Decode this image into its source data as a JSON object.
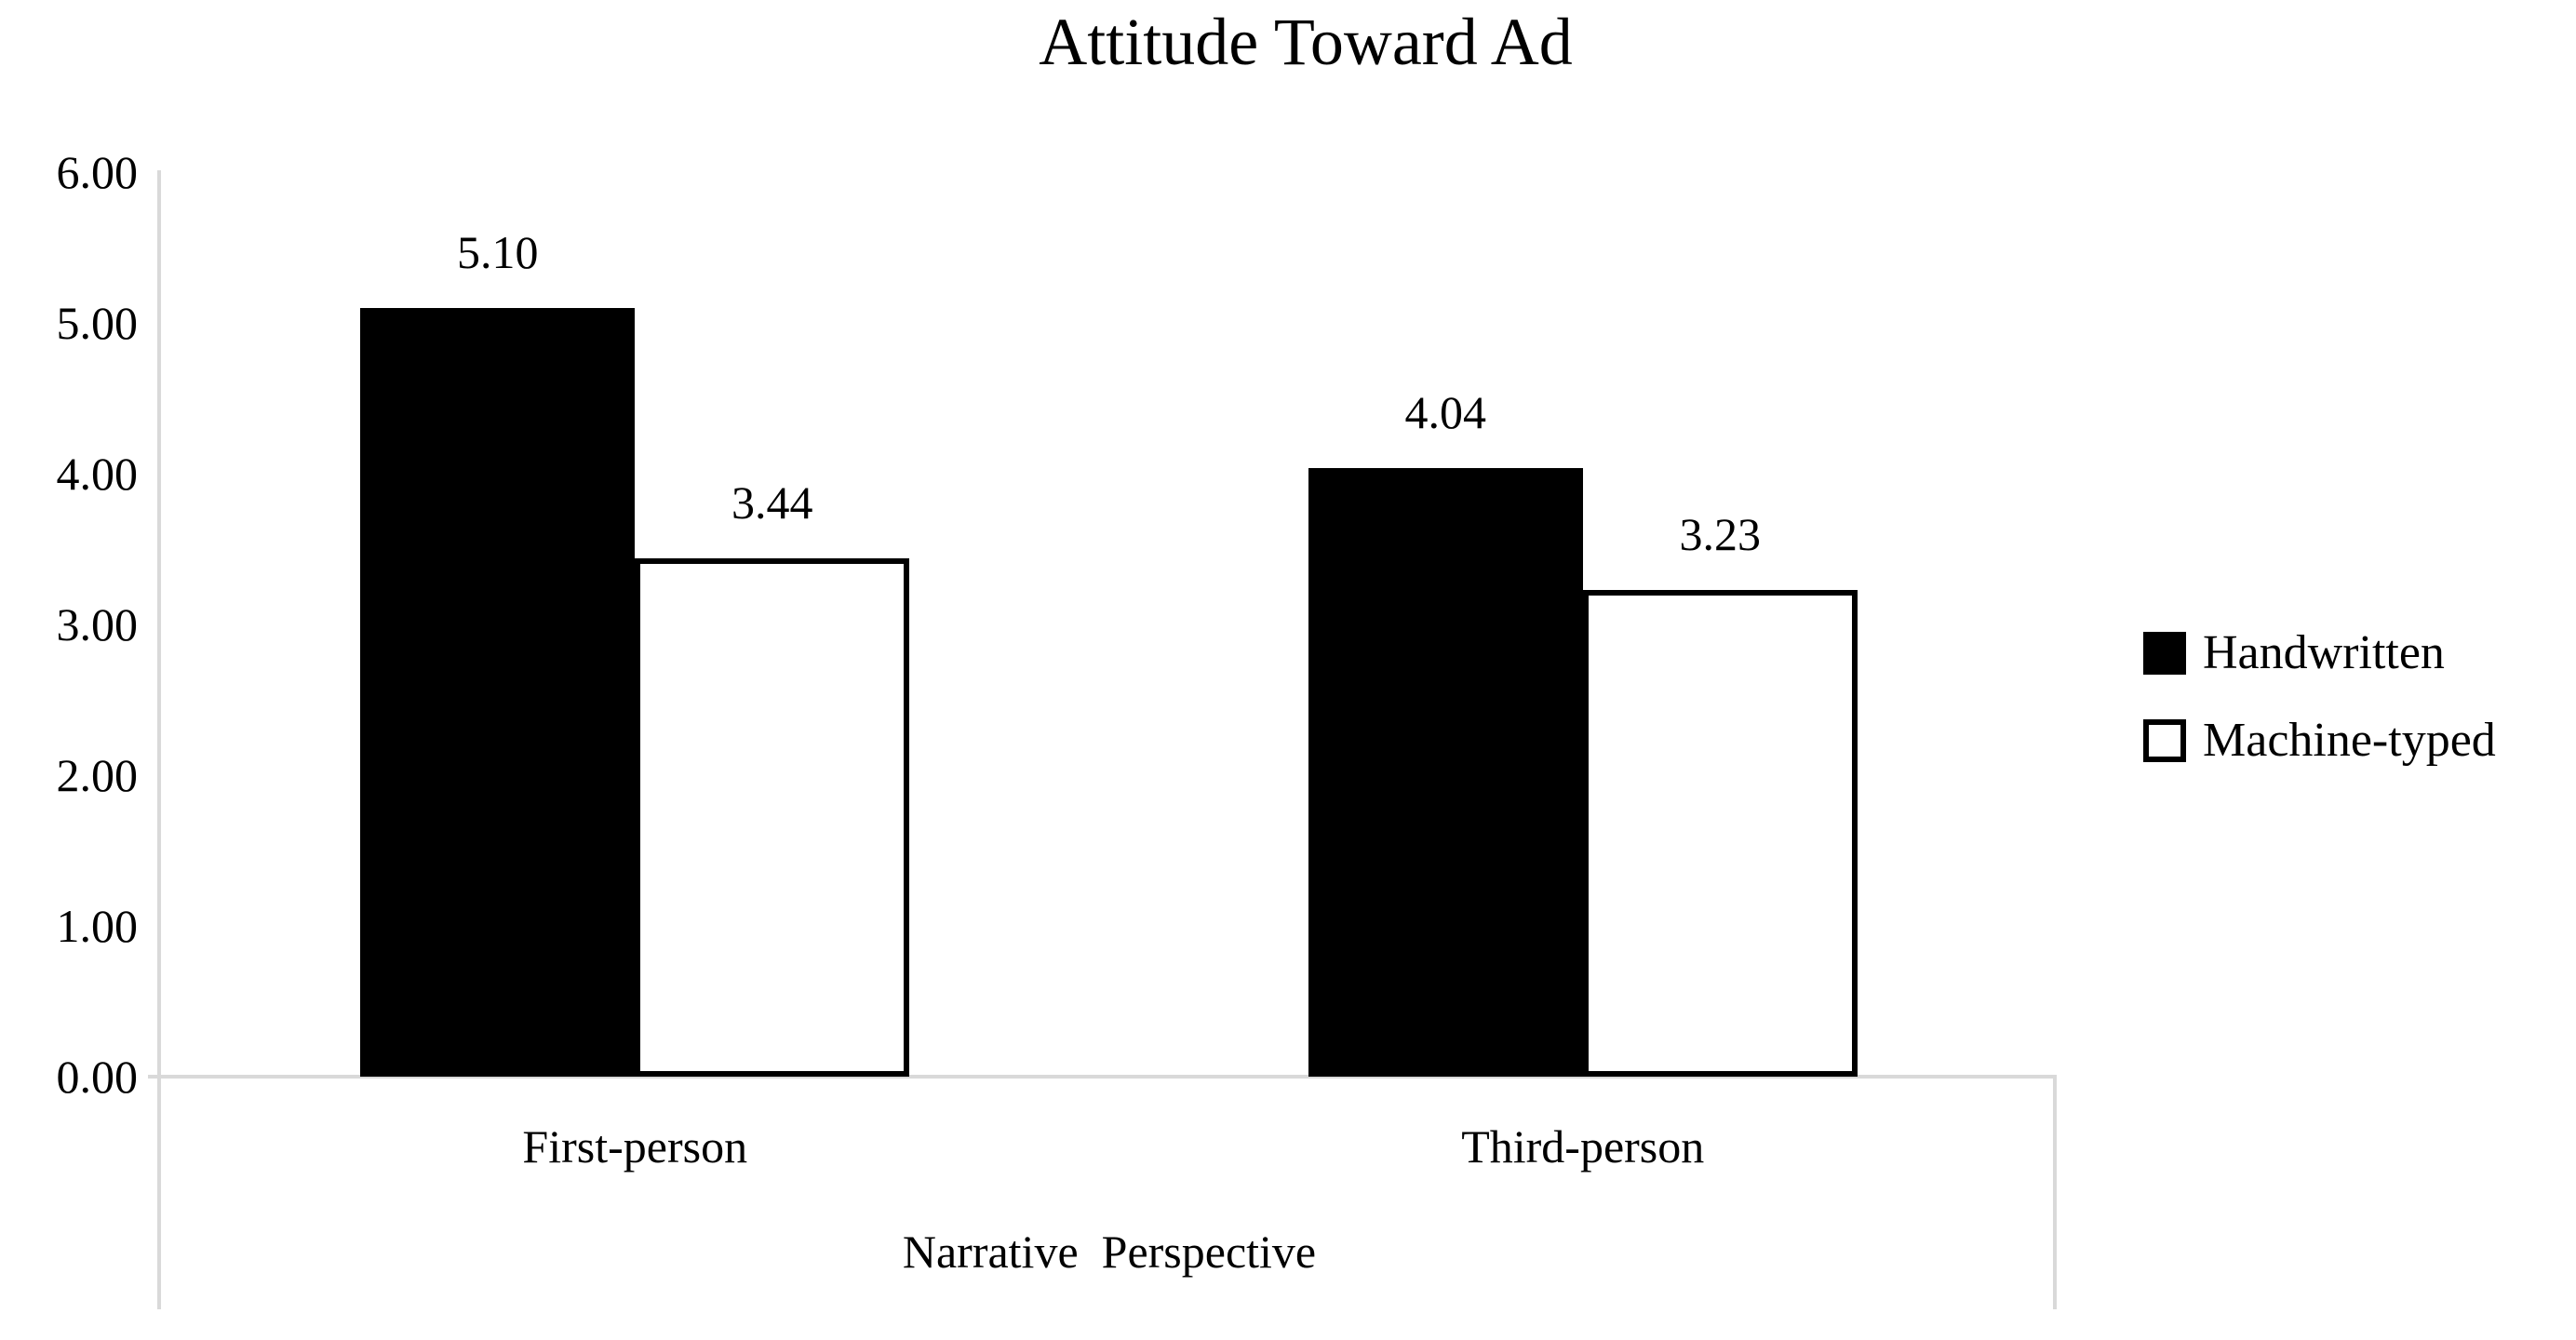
{
  "chart_data": {
    "type": "bar",
    "title": "Attitude Toward Ad",
    "categories": [
      "First-person",
      "Third-person"
    ],
    "series": [
      {
        "name": "Handwritten",
        "values": [
          5.1,
          4.04
        ],
        "labels": [
          "5.10",
          "4.04"
        ],
        "fill": "#000000",
        "stroke": "#000000"
      },
      {
        "name": "Machine-typed",
        "values": [
          3.44,
          3.23
        ],
        "labels": [
          "3.44",
          "3.23"
        ],
        "fill": "#ffffff",
        "stroke": "#000000"
      }
    ],
    "xlabel": "Narrative  Perspective",
    "ylabel": "",
    "ylim": [
      0,
      6
    ],
    "ytick_step": 1,
    "yticks": [
      {
        "label": "6.00",
        "value": 6
      },
      {
        "label": "5.00",
        "value": 5
      },
      {
        "label": "4.00",
        "value": 4
      },
      {
        "label": "3.00",
        "value": 3
      },
      {
        "label": "2.00",
        "value": 2
      },
      {
        "label": "1.00",
        "value": 1
      },
      {
        "label": "0.00",
        "value": 0
      }
    ],
    "grid": false,
    "legend_position": "right",
    "axis_color": "#d9d9d9",
    "text_color": "#000000",
    "background": "#ffffff"
  }
}
